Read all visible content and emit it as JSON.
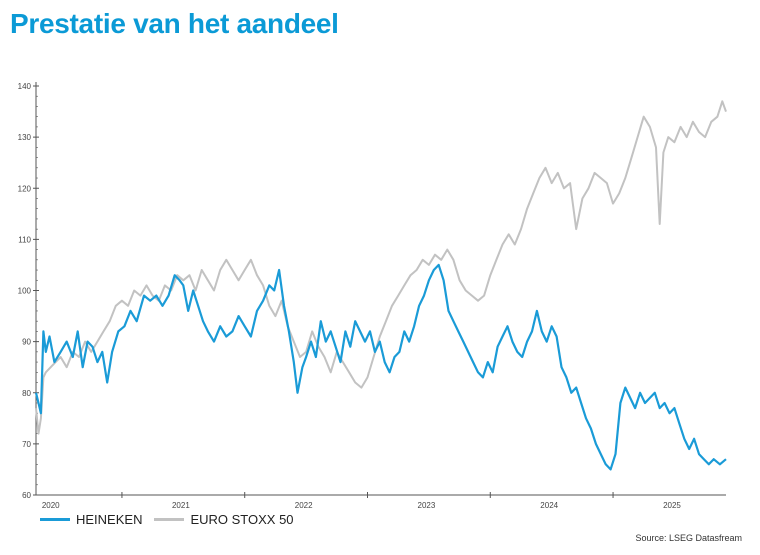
{
  "title": "Prestatie van het aandeel",
  "source": "Source: LSEG Datasfream",
  "colors": {
    "heineken": "#1a9bd7",
    "eurostoxx": "#c2c2c2",
    "axis": "#555555"
  },
  "chart_data": {
    "type": "line",
    "title": "Prestatie van het aandeel",
    "xlabel": "",
    "ylabel": "",
    "xlim": [
      2019.8,
      2025.42
    ],
    "ylim": [
      60,
      140
    ],
    "y_ticks": [
      60,
      70,
      80,
      90,
      100,
      110,
      120,
      130,
      140
    ],
    "x_ticks": [
      {
        "label": "2020",
        "pos": 2020.0
      },
      {
        "label": "2021",
        "pos": 2021.0
      },
      {
        "label": "2022",
        "pos": 2022.0
      },
      {
        "label": "2023",
        "pos": 2023.0
      },
      {
        "label": "2024",
        "pos": 2024.0
      },
      {
        "label": "2025",
        "pos": 2025.0
      }
    ],
    "grid": false,
    "legend": "bottom-left",
    "series": [
      {
        "name": "HEINEKEN",
        "color": "#1a9bd7",
        "points": [
          [
            2019.8,
            80
          ],
          [
            2019.82,
            78
          ],
          [
            2019.84,
            76
          ],
          [
            2019.86,
            92
          ],
          [
            2019.88,
            88
          ],
          [
            2019.91,
            91
          ],
          [
            2019.95,
            86
          ],
          [
            2020.0,
            88
          ],
          [
            2020.05,
            90
          ],
          [
            2020.1,
            87
          ],
          [
            2020.14,
            92
          ],
          [
            2020.18,
            85
          ],
          [
            2020.22,
            90
          ],
          [
            2020.26,
            89
          ],
          [
            2020.3,
            86
          ],
          [
            2020.34,
            88
          ],
          [
            2020.38,
            82
          ],
          [
            2020.42,
            88
          ],
          [
            2020.47,
            92
          ],
          [
            2020.52,
            93
          ],
          [
            2020.57,
            96
          ],
          [
            2020.62,
            94
          ],
          [
            2020.68,
            99
          ],
          [
            2020.73,
            98
          ],
          [
            2020.78,
            99
          ],
          [
            2020.83,
            97
          ],
          [
            2020.88,
            99
          ],
          [
            2020.93,
            103
          ],
          [
            2020.97,
            102
          ],
          [
            2021.0,
            101
          ],
          [
            2021.04,
            96
          ],
          [
            2021.08,
            100
          ],
          [
            2021.12,
            97
          ],
          [
            2021.16,
            94
          ],
          [
            2021.2,
            92
          ],
          [
            2021.25,
            90
          ],
          [
            2021.3,
            93
          ],
          [
            2021.35,
            91
          ],
          [
            2021.4,
            92
          ],
          [
            2021.45,
            95
          ],
          [
            2021.5,
            93
          ],
          [
            2021.55,
            91
          ],
          [
            2021.6,
            96
          ],
          [
            2021.65,
            98
          ],
          [
            2021.7,
            101
          ],
          [
            2021.74,
            100
          ],
          [
            2021.78,
            104
          ],
          [
            2021.82,
            97
          ],
          [
            2021.86,
            92
          ],
          [
            2021.9,
            86
          ],
          [
            2021.93,
            80
          ],
          [
            2021.97,
            85
          ],
          [
            2022.0,
            87
          ],
          [
            2022.04,
            90
          ],
          [
            2022.08,
            87
          ],
          [
            2022.12,
            94
          ],
          [
            2022.16,
            90
          ],
          [
            2022.2,
            92
          ],
          [
            2022.24,
            89
          ],
          [
            2022.28,
            86
          ],
          [
            2022.32,
            92
          ],
          [
            2022.36,
            89
          ],
          [
            2022.4,
            94
          ],
          [
            2022.44,
            92
          ],
          [
            2022.48,
            90
          ],
          [
            2022.52,
            92
          ],
          [
            2022.56,
            88
          ],
          [
            2022.6,
            90
          ],
          [
            2022.64,
            86
          ],
          [
            2022.68,
            84
          ],
          [
            2022.72,
            87
          ],
          [
            2022.76,
            88
          ],
          [
            2022.8,
            92
          ],
          [
            2022.84,
            90
          ],
          [
            2022.88,
            93
          ],
          [
            2022.92,
            97
          ],
          [
            2022.96,
            99
          ],
          [
            2023.0,
            102
          ],
          [
            2023.04,
            104
          ],
          [
            2023.08,
            105
          ],
          [
            2023.12,
            102
          ],
          [
            2023.16,
            96
          ],
          [
            2023.2,
            94
          ],
          [
            2023.24,
            92
          ],
          [
            2023.28,
            90
          ],
          [
            2023.32,
            88
          ],
          [
            2023.36,
            86
          ],
          [
            2023.4,
            84
          ],
          [
            2023.44,
            83
          ],
          [
            2023.48,
            86
          ],
          [
            2023.52,
            84
          ],
          [
            2023.56,
            89
          ],
          [
            2023.6,
            91
          ],
          [
            2023.64,
            93
          ],
          [
            2023.68,
            90
          ],
          [
            2023.72,
            88
          ],
          [
            2023.76,
            87
          ],
          [
            2023.8,
            90
          ],
          [
            2023.84,
            92
          ],
          [
            2023.88,
            96
          ],
          [
            2023.92,
            92
          ],
          [
            2023.96,
            90
          ],
          [
            2024.0,
            93
          ],
          [
            2024.04,
            91
          ],
          [
            2024.08,
            85
          ],
          [
            2024.12,
            83
          ],
          [
            2024.16,
            80
          ],
          [
            2024.2,
            81
          ],
          [
            2024.24,
            78
          ],
          [
            2024.28,
            75
          ],
          [
            2024.32,
            73
          ],
          [
            2024.36,
            70
          ],
          [
            2024.4,
            68
          ],
          [
            2024.44,
            66
          ],
          [
            2024.48,
            65
          ],
          [
            2024.52,
            68
          ],
          [
            2024.56,
            78
          ],
          [
            2024.6,
            81
          ],
          [
            2024.64,
            79
          ],
          [
            2024.68,
            77
          ],
          [
            2024.72,
            80
          ],
          [
            2024.76,
            78
          ],
          [
            2024.8,
            79
          ],
          [
            2024.84,
            80
          ],
          [
            2024.88,
            77
          ],
          [
            2024.92,
            78
          ],
          [
            2024.96,
            76
          ],
          [
            2025.0,
            77
          ],
          [
            2025.04,
            74
          ],
          [
            2025.08,
            71
          ],
          [
            2025.12,
            69
          ],
          [
            2025.16,
            71
          ],
          [
            2025.2,
            68
          ],
          [
            2025.24,
            67
          ],
          [
            2025.28,
            66
          ],
          [
            2025.32,
            67
          ],
          [
            2025.37,
            66
          ],
          [
            2025.42,
            67
          ]
        ]
      },
      {
        "name": "EURO STOXX 50",
        "color": "#c2c2c2",
        "points": [
          [
            2019.8,
            77
          ],
          [
            2019.82,
            72
          ],
          [
            2019.84,
            75
          ],
          [
            2019.86,
            83
          ],
          [
            2019.88,
            84
          ],
          [
            2019.92,
            85
          ],
          [
            2019.96,
            86
          ],
          [
            2020.0,
            87
          ],
          [
            2020.05,
            85
          ],
          [
            2020.1,
            88
          ],
          [
            2020.15,
            87
          ],
          [
            2020.2,
            90
          ],
          [
            2020.25,
            88
          ],
          [
            2020.3,
            90
          ],
          [
            2020.35,
            92
          ],
          [
            2020.4,
            94
          ],
          [
            2020.45,
            97
          ],
          [
            2020.5,
            98
          ],
          [
            2020.55,
            97
          ],
          [
            2020.6,
            100
          ],
          [
            2020.65,
            99
          ],
          [
            2020.7,
            101
          ],
          [
            2020.75,
            99
          ],
          [
            2020.8,
            98
          ],
          [
            2020.85,
            101
          ],
          [
            2020.9,
            100
          ],
          [
            2020.95,
            103
          ],
          [
            2021.0,
            102
          ],
          [
            2021.05,
            103
          ],
          [
            2021.1,
            100
          ],
          [
            2021.15,
            104
          ],
          [
            2021.2,
            102
          ],
          [
            2021.25,
            100
          ],
          [
            2021.3,
            104
          ],
          [
            2021.35,
            106
          ],
          [
            2021.4,
            104
          ],
          [
            2021.45,
            102
          ],
          [
            2021.5,
            104
          ],
          [
            2021.55,
            106
          ],
          [
            2021.6,
            103
          ],
          [
            2021.65,
            101
          ],
          [
            2021.7,
            97
          ],
          [
            2021.75,
            95
          ],
          [
            2021.8,
            98
          ],
          [
            2021.85,
            93
          ],
          [
            2021.9,
            90
          ],
          [
            2021.95,
            87
          ],
          [
            2022.0,
            88
          ],
          [
            2022.05,
            92
          ],
          [
            2022.1,
            89
          ],
          [
            2022.15,
            87
          ],
          [
            2022.2,
            84
          ],
          [
            2022.25,
            88
          ],
          [
            2022.3,
            86
          ],
          [
            2022.35,
            84
          ],
          [
            2022.4,
            82
          ],
          [
            2022.45,
            81
          ],
          [
            2022.5,
            83
          ],
          [
            2022.55,
            87
          ],
          [
            2022.6,
            91
          ],
          [
            2022.65,
            94
          ],
          [
            2022.7,
            97
          ],
          [
            2022.75,
            99
          ],
          [
            2022.8,
            101
          ],
          [
            2022.85,
            103
          ],
          [
            2022.9,
            104
          ],
          [
            2022.95,
            106
          ],
          [
            2023.0,
            105
          ],
          [
            2023.05,
            107
          ],
          [
            2023.1,
            106
          ],
          [
            2023.15,
            108
          ],
          [
            2023.2,
            106
          ],
          [
            2023.25,
            102
          ],
          [
            2023.3,
            100
          ],
          [
            2023.35,
            99
          ],
          [
            2023.4,
            98
          ],
          [
            2023.45,
            99
          ],
          [
            2023.5,
            103
          ],
          [
            2023.55,
            106
          ],
          [
            2023.6,
            109
          ],
          [
            2023.65,
            111
          ],
          [
            2023.7,
            109
          ],
          [
            2023.75,
            112
          ],
          [
            2023.8,
            116
          ],
          [
            2023.85,
            119
          ],
          [
            2023.9,
            122
          ],
          [
            2023.95,
            124
          ],
          [
            2024.0,
            121
          ],
          [
            2024.05,
            123
          ],
          [
            2024.1,
            120
          ],
          [
            2024.15,
            121
          ],
          [
            2024.2,
            112
          ],
          [
            2024.25,
            118
          ],
          [
            2024.3,
            120
          ],
          [
            2024.35,
            123
          ],
          [
            2024.4,
            122
          ],
          [
            2024.45,
            121
          ],
          [
            2024.5,
            117
          ],
          [
            2024.55,
            119
          ],
          [
            2024.6,
            122
          ],
          [
            2024.65,
            126
          ],
          [
            2024.7,
            130
          ],
          [
            2024.75,
            134
          ],
          [
            2024.8,
            132
          ],
          [
            2024.85,
            128
          ],
          [
            2024.88,
            113
          ],
          [
            2024.91,
            127
          ],
          [
            2024.95,
            130
          ],
          [
            2025.0,
            129
          ],
          [
            2025.05,
            132
          ],
          [
            2025.1,
            130
          ],
          [
            2025.15,
            133
          ],
          [
            2025.2,
            131
          ],
          [
            2025.25,
            130
          ],
          [
            2025.3,
            133
          ],
          [
            2025.35,
            134
          ],
          [
            2025.39,
            137
          ],
          [
            2025.42,
            135
          ]
        ]
      }
    ]
  }
}
